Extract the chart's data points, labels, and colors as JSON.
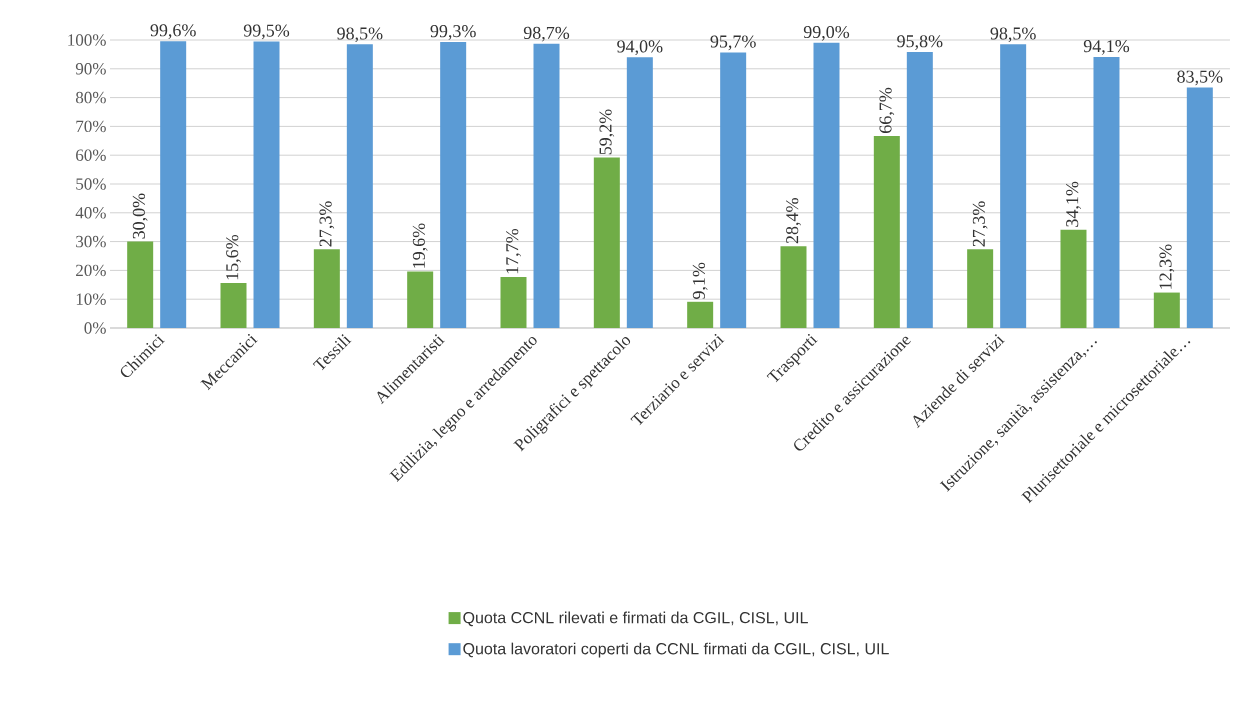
{
  "chart_data": {
    "type": "bar",
    "categories": [
      "Chimici",
      "Meccanici",
      "Tessili",
      "Alimentaristi",
      "Edilizia, legno e arredamento",
      "Poligrafici e spettacolo",
      "Terziario e servizi",
      "Trasporti",
      "Credito e assicurazione",
      "Aziende di servizi",
      "Istruzione, sanità, assistenza,…",
      "Plurisettoriale e microsettoriale…"
    ],
    "series": [
      {
        "name": "Quota CCNL rilevati e firmati da CGIL, CISL, UIL",
        "color": "#70ad47",
        "values": [
          30.0,
          15.6,
          27.3,
          19.6,
          17.7,
          59.2,
          9.1,
          28.4,
          66.7,
          27.3,
          34.1,
          12.3
        ],
        "value_labels": [
          "30,0%",
          "15,6%",
          "27,3%",
          "19,6%",
          "17,7%",
          "59,2%",
          "9,1%",
          "28,4%",
          "66,7%",
          "27,3%",
          "34,1%",
          "12,3%"
        ]
      },
      {
        "name": "Quota lavoratori coperti da CCNL firmati da CGIL, CISL, UIL",
        "color": "#5b9bd5",
        "values": [
          99.6,
          99.5,
          98.5,
          99.3,
          98.7,
          94.0,
          95.7,
          99.0,
          95.8,
          98.5,
          94.1,
          83.5
        ],
        "value_labels": [
          "99,6%",
          "99,5%",
          "98,5%",
          "99,3%",
          "98,7%",
          "94,0%",
          "95,7%",
          "99,0%",
          "95,8%",
          "98,5%",
          "94,1%",
          "83,5%"
        ]
      }
    ],
    "ylim": [
      0,
      100
    ],
    "yticks": [
      {
        "value": 0,
        "label": "0%"
      },
      {
        "value": 10,
        "label": "10%"
      },
      {
        "value": 20,
        "label": "20%"
      },
      {
        "value": 30,
        "label": "30%"
      },
      {
        "value": 40,
        "label": "40%"
      },
      {
        "value": 50,
        "label": "50%"
      },
      {
        "value": 60,
        "label": "60%"
      },
      {
        "value": 70,
        "label": "70%"
      },
      {
        "value": 80,
        "label": "80%"
      },
      {
        "value": 90,
        "label": "90%"
      },
      {
        "value": 100,
        "label": "100%"
      }
    ],
    "grid": "y",
    "legend": "bottom"
  }
}
